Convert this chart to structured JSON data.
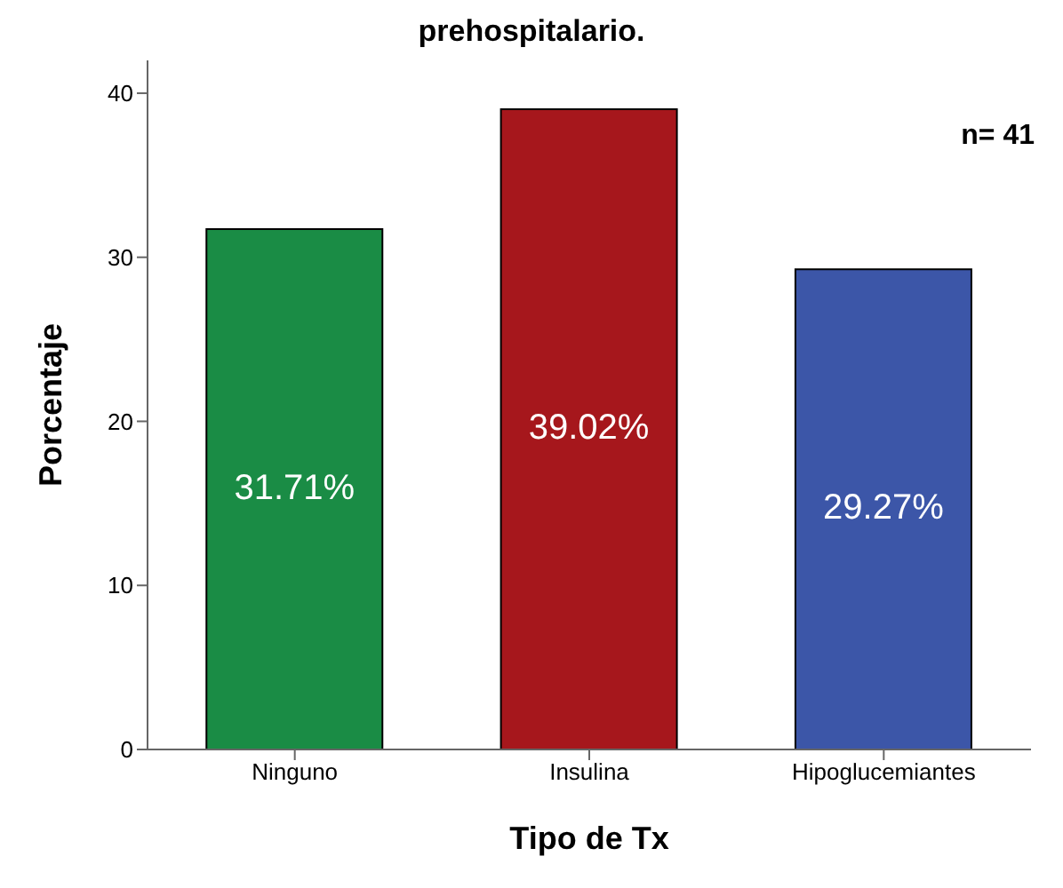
{
  "chart_data": {
    "type": "bar",
    "title": "prehospitalario.",
    "xlabel": "Tipo de Tx",
    "ylabel": "Porcentaje",
    "categories": [
      "Ninguno",
      "Insulina",
      "Hipoglucemiantes"
    ],
    "values": [
      31.71,
      39.02,
      29.27
    ],
    "colors": [
      "#1a8c45",
      "#a6171c",
      "#3c56a8"
    ],
    "value_labels": [
      "31.71%",
      "39.02%",
      "29.27%"
    ],
    "ylim": [
      0,
      42
    ],
    "yticks": [
      0,
      10,
      20,
      30,
      40
    ],
    "grid": false,
    "annotations": [
      "n= 41"
    ]
  }
}
